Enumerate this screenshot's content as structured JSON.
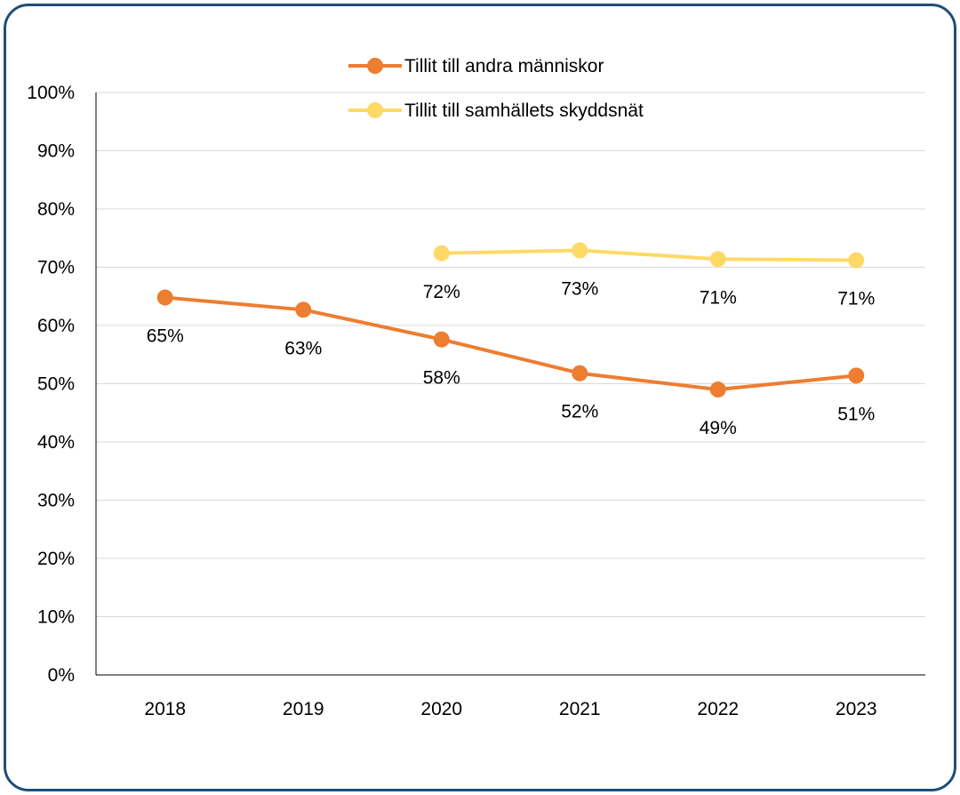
{
  "chart_data": {
    "type": "line",
    "categories": [
      "2018",
      "2019",
      "2020",
      "2021",
      "2022",
      "2023"
    ],
    "ylim": [
      0,
      100
    ],
    "ytick_labels": [
      "0%",
      "10%",
      "20%",
      "30%",
      "40%",
      "50%",
      "60%",
      "70%",
      "80%",
      "90%",
      "100%"
    ],
    "grid": true,
    "legend_position": "top",
    "series": [
      {
        "name": "Tillit till andra människor",
        "color": "#ed7d31",
        "values": [
          64.8,
          62.7,
          57.6,
          51.8,
          49.0,
          51.4
        ],
        "labels": [
          "65%",
          "63%",
          "58%",
          "52%",
          "49%",
          "51%"
        ]
      },
      {
        "name": "Tillit till samhällets skyddsnät",
        "color": "#ffd966",
        "values": [
          null,
          null,
          72.4,
          72.9,
          71.4,
          71.2
        ],
        "labels": [
          null,
          null,
          "72%",
          "73%",
          "71%",
          "71%"
        ]
      }
    ]
  }
}
